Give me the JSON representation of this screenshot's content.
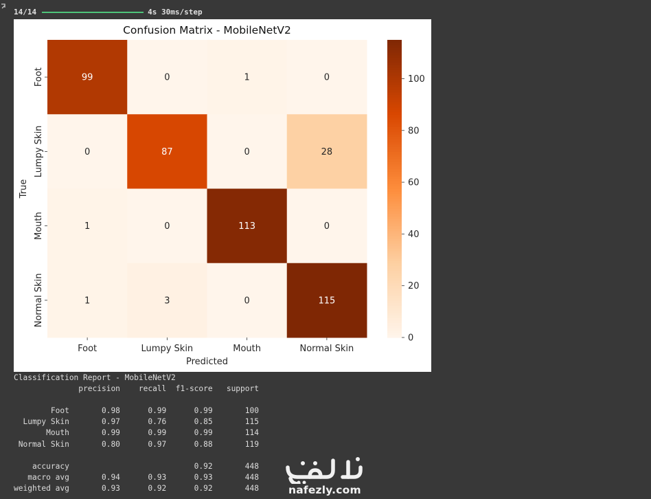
{
  "cell": {
    "progress": {
      "steps": "14/14",
      "timing": "4s 30ms/step",
      "fraction": 1.0
    }
  },
  "chart_data": {
    "type": "heatmap",
    "title": "Confusion Matrix - MobileNetV2",
    "xlabel": "Predicted",
    "ylabel": "True",
    "x_categories": [
      "Foot",
      "Lumpy Skin",
      "Mouth",
      "Normal Skin"
    ],
    "y_categories": [
      "Foot",
      "Lumpy Skin",
      "Mouth",
      "Normal Skin"
    ],
    "values": [
      [
        99,
        0,
        1,
        0
      ],
      [
        0,
        87,
        0,
        28
      ],
      [
        1,
        0,
        113,
        0
      ],
      [
        1,
        3,
        0,
        115
      ]
    ],
    "colormap": [
      "#fff5eb",
      "#fdd0a2",
      "#fd8d3c",
      "#d94801",
      "#7f2704"
    ],
    "vmin": 0,
    "vmax": 115,
    "colorbar_ticks": [
      0,
      20,
      40,
      60,
      80,
      100
    ]
  },
  "report": {
    "lines": [
      "Classification Report - MobileNetV2",
      "              precision    recall  f1-score   support",
      "",
      "        Foot       0.98      0.99      0.99       100",
      "  Lumpy Skin       0.97      0.76      0.85       115",
      "       Mouth       0.99      0.99      0.99       114",
      " Normal Skin       0.80      0.97      0.88       119",
      "",
      "    accuracy                           0.92       448",
      "   macro avg       0.94      0.93      0.93       448",
      "weighted avg       0.93      0.92      0.92       448"
    ]
  },
  "watermark": {
    "logo_text": "نفذلي",
    "url": "nafezly.com",
    "color": "#f1f1f1"
  }
}
